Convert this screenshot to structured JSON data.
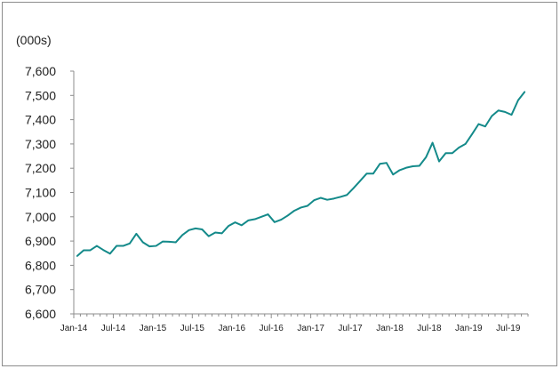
{
  "chart_data": {
    "type": "line",
    "ylabel": "(000s)",
    "ylim": [
      6600,
      7600
    ],
    "yticks": [
      "6,600",
      "6,700",
      "6,800",
      "6,900",
      "7,000",
      "7,100",
      "7,200",
      "7,300",
      "7,400",
      "7,500",
      "7,600"
    ],
    "xtick_labels": [
      "Jan-14",
      "Jul-14",
      "Jan-15",
      "Jul-15",
      "Jan-16",
      "Jul-16",
      "Jan-17",
      "Jul-17",
      "Jan-18",
      "Jul-18",
      "Jan-19",
      "Jul-19"
    ],
    "line_color": "#148a8a",
    "grid": false,
    "x": [
      "2014-01",
      "2014-02",
      "2014-03",
      "2014-04",
      "2014-05",
      "2014-06",
      "2014-07",
      "2014-08",
      "2014-09",
      "2014-10",
      "2014-11",
      "2014-12",
      "2015-01",
      "2015-02",
      "2015-03",
      "2015-04",
      "2015-05",
      "2015-06",
      "2015-07",
      "2015-08",
      "2015-09",
      "2015-10",
      "2015-11",
      "2015-12",
      "2016-01",
      "2016-02",
      "2016-03",
      "2016-04",
      "2016-05",
      "2016-06",
      "2016-07",
      "2016-08",
      "2016-09",
      "2016-10",
      "2016-11",
      "2016-12",
      "2017-01",
      "2017-02",
      "2017-03",
      "2017-04",
      "2017-05",
      "2017-06",
      "2017-07",
      "2017-08",
      "2017-09",
      "2017-10",
      "2017-11",
      "2017-12",
      "2018-01",
      "2018-02",
      "2018-03",
      "2018-04",
      "2018-05",
      "2018-06",
      "2018-07",
      "2018-08",
      "2018-09",
      "2018-10",
      "2018-11",
      "2018-12",
      "2019-01",
      "2019-02",
      "2019-03",
      "2019-04",
      "2019-05",
      "2019-06",
      "2019-07",
      "2019-08",
      "2019-09"
    ],
    "values": [
      6838,
      6862,
      6862,
      6880,
      6863,
      6848,
      6880,
      6880,
      6890,
      6930,
      6895,
      6878,
      6880,
      6898,
      6897,
      6895,
      6925,
      6945,
      6952,
      6948,
      6920,
      6935,
      6932,
      6962,
      6977,
      6965,
      6985,
      6990,
      7000,
      7010,
      6978,
      6988,
      7005,
      7025,
      7038,
      7045,
      7068,
      7078,
      7070,
      7075,
      7082,
      7090,
      7118,
      7148,
      7178,
      7178,
      7218,
      7222,
      7174,
      7192,
      7202,
      7208,
      7210,
      7245,
      7305,
      7228,
      7262,
      7262,
      7285,
      7300,
      7340,
      7382,
      7372,
      7415,
      7438,
      7432,
      7420,
      7480,
      7515
    ]
  }
}
